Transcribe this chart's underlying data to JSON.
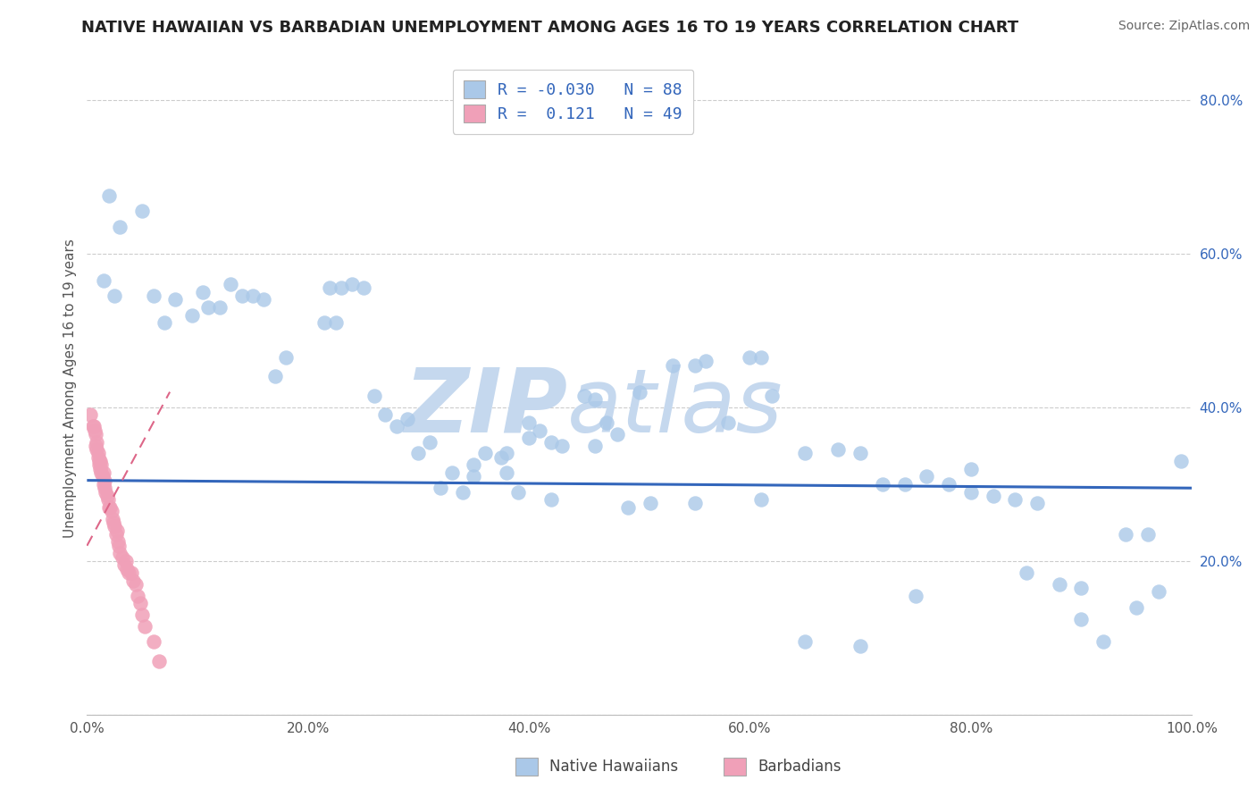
{
  "title": "NATIVE HAWAIIAN VS BARBADIAN UNEMPLOYMENT AMONG AGES 16 TO 19 YEARS CORRELATION CHART",
  "source": "Source: ZipAtlas.com",
  "ylabel": "Unemployment Among Ages 16 to 19 years",
  "xlim": [
    0.0,
    1.0
  ],
  "ylim": [
    0.0,
    0.85
  ],
  "xticks": [
    0.0,
    0.2,
    0.4,
    0.6,
    0.8,
    1.0
  ],
  "yticks": [
    0.0,
    0.2,
    0.4,
    0.6,
    0.8
  ],
  "xticklabels": [
    "0.0%",
    "20.0%",
    "40.0%",
    "60.0%",
    "80.0%",
    "100.0%"
  ],
  "yticklabels_right": [
    "",
    "20.0%",
    "40.0%",
    "60.0%",
    "80.0%"
  ],
  "background_color": "#ffffff",
  "grid_color": "#cccccc",
  "hawaiian_color": "#aac8e8",
  "barbadian_color": "#f0a0b8",
  "hawaiian_line_color": "#3366bb",
  "barbadian_line_color": "#dd6688",
  "legend_text_color": "#3366bb",
  "R_hawaiian": -0.03,
  "N_hawaiian": 88,
  "R_barbadian": 0.121,
  "N_barbadian": 49,
  "hawaiian_x": [
    0.02,
    0.03,
    0.015,
    0.025,
    0.05,
    0.06,
    0.07,
    0.08,
    0.095,
    0.11,
    0.12,
    0.105,
    0.13,
    0.14,
    0.15,
    0.16,
    0.17,
    0.18,
    0.22,
    0.23,
    0.24,
    0.25,
    0.215,
    0.225,
    0.26,
    0.27,
    0.28,
    0.29,
    0.3,
    0.31,
    0.32,
    0.33,
    0.34,
    0.35,
    0.36,
    0.375,
    0.39,
    0.4,
    0.41,
    0.42,
    0.35,
    0.38,
    0.45,
    0.46,
    0.47,
    0.48,
    0.5,
    0.42,
    0.51,
    0.49,
    0.38,
    0.4,
    0.43,
    0.46,
    0.53,
    0.55,
    0.56,
    0.58,
    0.6,
    0.61,
    0.62,
    0.65,
    0.68,
    0.7,
    0.72,
    0.74,
    0.76,
    0.78,
    0.8,
    0.82,
    0.84,
    0.86,
    0.88,
    0.9,
    0.92,
    0.94,
    0.96,
    0.97,
    0.55,
    0.61,
    0.65,
    0.7,
    0.75,
    0.8,
    0.85,
    0.9,
    0.95,
    0.99
  ],
  "hawaiian_y": [
    0.675,
    0.635,
    0.565,
    0.545,
    0.655,
    0.545,
    0.51,
    0.54,
    0.52,
    0.53,
    0.53,
    0.55,
    0.56,
    0.545,
    0.545,
    0.54,
    0.44,
    0.465,
    0.555,
    0.555,
    0.56,
    0.555,
    0.51,
    0.51,
    0.415,
    0.39,
    0.375,
    0.385,
    0.34,
    0.355,
    0.295,
    0.315,
    0.29,
    0.325,
    0.34,
    0.335,
    0.29,
    0.38,
    0.37,
    0.355,
    0.31,
    0.315,
    0.415,
    0.41,
    0.38,
    0.365,
    0.42,
    0.28,
    0.275,
    0.27,
    0.34,
    0.36,
    0.35,
    0.35,
    0.455,
    0.455,
    0.46,
    0.38,
    0.465,
    0.465,
    0.415,
    0.34,
    0.345,
    0.34,
    0.3,
    0.3,
    0.31,
    0.3,
    0.29,
    0.285,
    0.28,
    0.275,
    0.17,
    0.125,
    0.095,
    0.235,
    0.235,
    0.16,
    0.275,
    0.28,
    0.095,
    0.09,
    0.155,
    0.32,
    0.185,
    0.165,
    0.14,
    0.33
  ],
  "barbadian_x": [
    0.003,
    0.005,
    0.006,
    0.007,
    0.008,
    0.008,
    0.009,
    0.009,
    0.01,
    0.01,
    0.011,
    0.011,
    0.012,
    0.012,
    0.013,
    0.013,
    0.014,
    0.015,
    0.015,
    0.016,
    0.016,
    0.017,
    0.018,
    0.019,
    0.02,
    0.021,
    0.022,
    0.023,
    0.024,
    0.025,
    0.026,
    0.027,
    0.028,
    0.029,
    0.03,
    0.032,
    0.034,
    0.035,
    0.036,
    0.038,
    0.04,
    0.042,
    0.044,
    0.046,
    0.048,
    0.05,
    0.052,
    0.06,
    0.065
  ],
  "barbadian_y": [
    0.39,
    0.375,
    0.375,
    0.37,
    0.365,
    0.35,
    0.355,
    0.345,
    0.34,
    0.335,
    0.33,
    0.325,
    0.33,
    0.32,
    0.315,
    0.325,
    0.31,
    0.315,
    0.3,
    0.305,
    0.295,
    0.29,
    0.285,
    0.28,
    0.27,
    0.27,
    0.265,
    0.255,
    0.25,
    0.245,
    0.235,
    0.24,
    0.225,
    0.22,
    0.21,
    0.205,
    0.195,
    0.2,
    0.19,
    0.185,
    0.185,
    0.175,
    0.17,
    0.155,
    0.145,
    0.13,
    0.115,
    0.095,
    0.07
  ],
  "watermark_zip_color": "#c5d8ee",
  "watermark_atlas_color": "#c5d8ee"
}
